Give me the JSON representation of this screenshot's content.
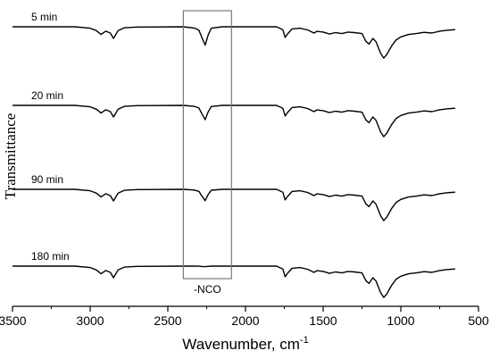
{
  "chart_data": {
    "type": "line",
    "xlabel": "Wavenumber, cm",
    "xlabel_superscript": "-1",
    "ylabel": "Transmittance",
    "xlim": [
      3500,
      500
    ],
    "x_ticks": [
      3500,
      3000,
      2500,
      2000,
      1500,
      1000,
      500
    ],
    "x_tick_labels": [
      "3500",
      "3000",
      "2500",
      "2000",
      "1500",
      "1000",
      "500"
    ],
    "grid": false,
    "annotation": {
      "label": "-NCO",
      "x_range": [
        2400,
        2090
      ]
    },
    "series": [
      {
        "name": "5 min",
        "nco_depth": 1.0,
        "points": [
          [
            3500,
            0
          ],
          [
            3100,
            0
          ],
          [
            3000,
            -0.6
          ],
          [
            2960,
            -1.6
          ],
          [
            2930,
            -3.2
          ],
          [
            2900,
            -1.8
          ],
          [
            2870,
            -2.6
          ],
          [
            2850,
            -4.8
          ],
          [
            2820,
            -1.6
          ],
          [
            2780,
            -0.4
          ],
          [
            2700,
            -0.1
          ],
          [
            2400,
            0
          ],
          [
            2330,
            -0.5
          ],
          [
            2300,
            -1.4
          ],
          [
            2280,
            -4.6
          ],
          [
            2260,
            -7.6
          ],
          [
            2240,
            -3.4
          ],
          [
            2220,
            -0.6
          ],
          [
            2150,
            0
          ],
          [
            1800,
            0
          ],
          [
            1760,
            -1.2
          ],
          [
            1745,
            -4.4
          ],
          [
            1730,
            -3.0
          ],
          [
            1700,
            -0.9
          ],
          [
            1650,
            -0.6
          ],
          [
            1600,
            -1.3
          ],
          [
            1560,
            -2.6
          ],
          [
            1540,
            -1.9
          ],
          [
            1500,
            -2.2
          ],
          [
            1460,
            -3.0
          ],
          [
            1420,
            -2.4
          ],
          [
            1380,
            -2.8
          ],
          [
            1340,
            -2.2
          ],
          [
            1300,
            -2.4
          ],
          [
            1250,
            -2.8
          ],
          [
            1225,
            -6.0
          ],
          [
            1205,
            -7.2
          ],
          [
            1180,
            -4.8
          ],
          [
            1160,
            -6.2
          ],
          [
            1130,
            -11.0
          ],
          [
            1110,
            -13.0
          ],
          [
            1090,
            -11.5
          ],
          [
            1060,
            -8.0
          ],
          [
            1030,
            -5.4
          ],
          [
            1000,
            -4.2
          ],
          [
            950,
            -3.2
          ],
          [
            900,
            -2.8
          ],
          [
            850,
            -2.3
          ],
          [
            800,
            -2.6
          ],
          [
            750,
            -1.8
          ],
          [
            700,
            -1.4
          ],
          [
            650,
            -1.2
          ]
        ]
      },
      {
        "name": "20 min",
        "nco_depth": 0.78,
        "points": [
          [
            3500,
            0
          ],
          [
            3100,
            0
          ],
          [
            3000,
            -0.6
          ],
          [
            2960,
            -1.6
          ],
          [
            2930,
            -3.2
          ],
          [
            2900,
            -1.8
          ],
          [
            2870,
            -2.6
          ],
          [
            2850,
            -4.8
          ],
          [
            2820,
            -1.6
          ],
          [
            2780,
            -0.4
          ],
          [
            2700,
            -0.1
          ],
          [
            2400,
            0
          ],
          [
            2330,
            -0.5
          ],
          [
            2300,
            -1.4
          ],
          [
            2280,
            -4.6
          ],
          [
            2260,
            -7.6
          ],
          [
            2240,
            -3.4
          ],
          [
            2220,
            -0.6
          ],
          [
            2150,
            0
          ],
          [
            1800,
            0
          ],
          [
            1760,
            -1.2
          ],
          [
            1745,
            -4.4
          ],
          [
            1730,
            -3.0
          ],
          [
            1700,
            -0.9
          ],
          [
            1650,
            -0.6
          ],
          [
            1600,
            -1.3
          ],
          [
            1560,
            -2.6
          ],
          [
            1540,
            -1.9
          ],
          [
            1500,
            -2.2
          ],
          [
            1460,
            -3.0
          ],
          [
            1420,
            -2.4
          ],
          [
            1380,
            -2.8
          ],
          [
            1340,
            -2.2
          ],
          [
            1300,
            -2.4
          ],
          [
            1250,
            -2.8
          ],
          [
            1225,
            -6.0
          ],
          [
            1205,
            -7.2
          ],
          [
            1180,
            -4.8
          ],
          [
            1160,
            -6.2
          ],
          [
            1130,
            -11.0
          ],
          [
            1110,
            -13.0
          ],
          [
            1090,
            -11.5
          ],
          [
            1060,
            -8.0
          ],
          [
            1030,
            -5.4
          ],
          [
            1000,
            -4.2
          ],
          [
            950,
            -3.2
          ],
          [
            900,
            -2.8
          ],
          [
            850,
            -2.3
          ],
          [
            800,
            -2.6
          ],
          [
            750,
            -1.8
          ],
          [
            700,
            -1.4
          ],
          [
            650,
            -1.2
          ]
        ]
      },
      {
        "name": "90 min",
        "nco_depth": 0.62,
        "points": [
          [
            3500,
            0
          ],
          [
            3100,
            0
          ],
          [
            3000,
            -0.6
          ],
          [
            2960,
            -1.6
          ],
          [
            2930,
            -3.2
          ],
          [
            2900,
            -1.8
          ],
          [
            2870,
            -2.6
          ],
          [
            2850,
            -4.8
          ],
          [
            2820,
            -1.6
          ],
          [
            2780,
            -0.4
          ],
          [
            2700,
            -0.1
          ],
          [
            2400,
            0
          ],
          [
            2330,
            -0.5
          ],
          [
            2300,
            -1.4
          ],
          [
            2280,
            -4.6
          ],
          [
            2260,
            -7.6
          ],
          [
            2240,
            -3.4
          ],
          [
            2220,
            -0.6
          ],
          [
            2150,
            0
          ],
          [
            1800,
            0
          ],
          [
            1760,
            -1.2
          ],
          [
            1745,
            -4.4
          ],
          [
            1730,
            -3.0
          ],
          [
            1700,
            -0.9
          ],
          [
            1650,
            -0.6
          ],
          [
            1600,
            -1.3
          ],
          [
            1560,
            -2.6
          ],
          [
            1540,
            -1.9
          ],
          [
            1500,
            -2.2
          ],
          [
            1460,
            -3.0
          ],
          [
            1420,
            -2.4
          ],
          [
            1380,
            -2.8
          ],
          [
            1340,
            -2.2
          ],
          [
            1300,
            -2.4
          ],
          [
            1250,
            -2.8
          ],
          [
            1225,
            -6.0
          ],
          [
            1205,
            -7.2
          ],
          [
            1180,
            -4.8
          ],
          [
            1160,
            -6.2
          ],
          [
            1130,
            -11.0
          ],
          [
            1110,
            -13.0
          ],
          [
            1090,
            -11.5
          ],
          [
            1060,
            -8.0
          ],
          [
            1030,
            -5.4
          ],
          [
            1000,
            -4.2
          ],
          [
            950,
            -3.2
          ],
          [
            900,
            -2.8
          ],
          [
            850,
            -2.3
          ],
          [
            800,
            -2.6
          ],
          [
            750,
            -1.8
          ],
          [
            700,
            -1.4
          ],
          [
            650,
            -1.2
          ]
        ]
      },
      {
        "name": "180 min",
        "nco_depth": 0.03,
        "points": [
          [
            3500,
            0
          ],
          [
            3100,
            0
          ],
          [
            3000,
            -0.6
          ],
          [
            2960,
            -1.6
          ],
          [
            2930,
            -3.2
          ],
          [
            2900,
            -1.8
          ],
          [
            2870,
            -2.6
          ],
          [
            2850,
            -4.8
          ],
          [
            2820,
            -1.6
          ],
          [
            2780,
            -0.4
          ],
          [
            2700,
            -0.1
          ],
          [
            2400,
            0
          ],
          [
            2330,
            -0.5
          ],
          [
            2300,
            -1.4
          ],
          [
            2280,
            -4.6
          ],
          [
            2260,
            -7.6
          ],
          [
            2240,
            -3.4
          ],
          [
            2220,
            -0.6
          ],
          [
            2150,
            0
          ],
          [
            1800,
            0
          ],
          [
            1760,
            -1.2
          ],
          [
            1745,
            -4.4
          ],
          [
            1730,
            -3.0
          ],
          [
            1700,
            -0.9
          ],
          [
            1650,
            -0.6
          ],
          [
            1600,
            -1.3
          ],
          [
            1560,
            -2.6
          ],
          [
            1540,
            -1.9
          ],
          [
            1500,
            -2.2
          ],
          [
            1460,
            -3.0
          ],
          [
            1420,
            -2.4
          ],
          [
            1380,
            -2.8
          ],
          [
            1340,
            -2.2
          ],
          [
            1300,
            -2.4
          ],
          [
            1250,
            -2.8
          ],
          [
            1225,
            -6.0
          ],
          [
            1205,
            -7.2
          ],
          [
            1180,
            -4.8
          ],
          [
            1160,
            -6.2
          ],
          [
            1130,
            -11.0
          ],
          [
            1110,
            -13.0
          ],
          [
            1090,
            -11.5
          ],
          [
            1060,
            -8.0
          ],
          [
            1030,
            -5.4
          ],
          [
            1000,
            -4.2
          ],
          [
            950,
            -3.2
          ],
          [
            900,
            -2.8
          ],
          [
            850,
            -2.3
          ],
          [
            800,
            -2.6
          ],
          [
            750,
            -1.8
          ],
          [
            700,
            -1.4
          ],
          [
            650,
            -1.2
          ]
        ]
      }
    ]
  }
}
